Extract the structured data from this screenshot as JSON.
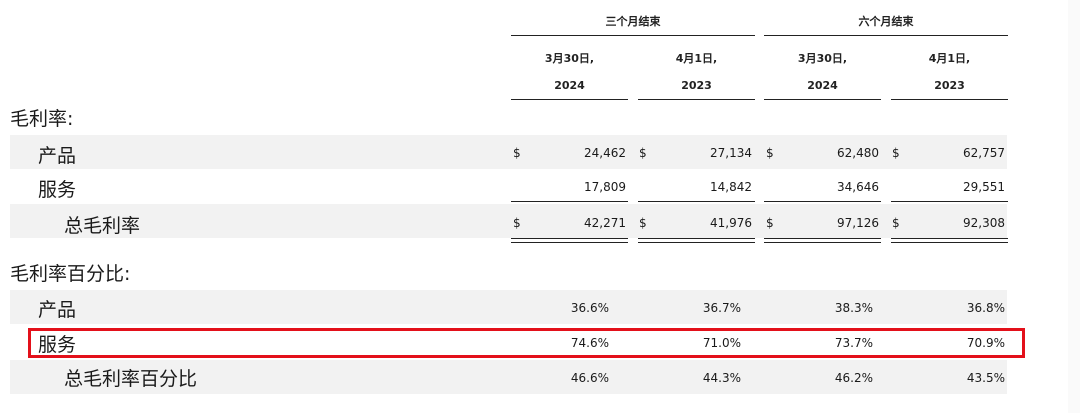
{
  "header": {
    "group1": "三个月结束",
    "group2": "六个月结束",
    "cols": [
      {
        "date": "3月30日,",
        "year": "2024"
      },
      {
        "date": "4月1日,",
        "year": "2023"
      },
      {
        "date": "3月30日,",
        "year": "2024"
      },
      {
        "date": "4月1日,",
        "year": "2023"
      }
    ]
  },
  "currency_symbol": "$",
  "gross_margin": {
    "title": "毛利率:",
    "rows": [
      {
        "label": "产品",
        "values": [
          "24,462",
          "27,134",
          "62,480",
          "62,757"
        ]
      },
      {
        "label": "服务",
        "values": [
          "17,809",
          "14,842",
          "34,646",
          "29,551"
        ]
      },
      {
        "label": "总毛利率",
        "values": [
          "42,271",
          "41,976",
          "97,126",
          "92,308"
        ]
      }
    ]
  },
  "gross_margin_pct": {
    "title": "毛利率百分比:",
    "rows": [
      {
        "label": "产品",
        "values": [
          "36.6%",
          "36.7%",
          "38.3%",
          "36.8%"
        ]
      },
      {
        "label": "服务",
        "values": [
          "74.6%",
          "71.0%",
          "73.7%",
          "70.9%"
        ]
      },
      {
        "label": "总毛利率百分比",
        "values": [
          "46.6%",
          "44.3%",
          "46.2%",
          "43.5%"
        ]
      }
    ]
  },
  "highlight_color": "#e3101a"
}
